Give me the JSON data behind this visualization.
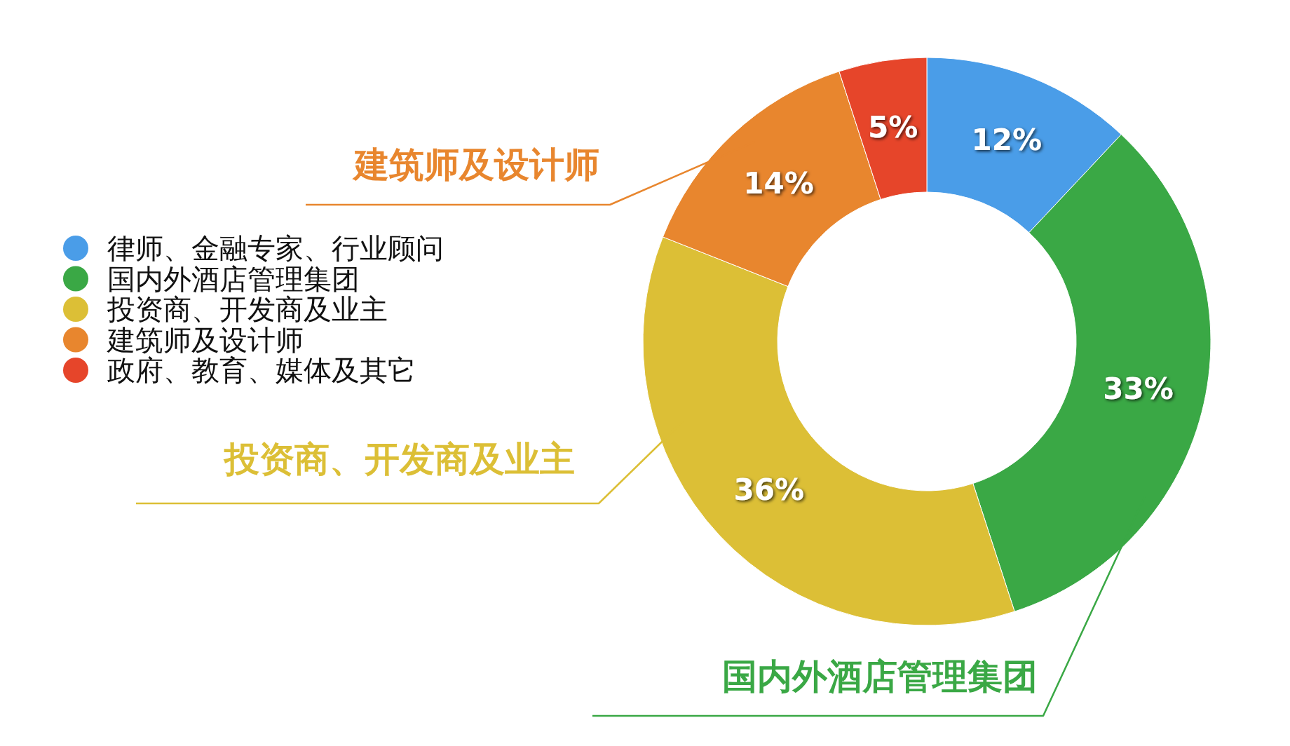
{
  "chart_data": {
    "type": "donut",
    "categories": [
      "律师、金融专家、行业顾问",
      "国内外酒店管理集团",
      "投资商、开发商及业主",
      "建筑师及设计师",
      "政府、教育、媒体及其它"
    ],
    "values": [
      12,
      33,
      36,
      14,
      5
    ],
    "colors": [
      "#4a9de8",
      "#3aa845",
      "#dcbf36",
      "#e8862e",
      "#e6452a"
    ],
    "value_labels": [
      "12%",
      "33%",
      "36%",
      "14%",
      "5%"
    ],
    "legend": "left",
    "annotations": [
      {
        "text": "建筑师及设计师",
        "x": "建筑师及设计师"
      },
      {
        "text": "投资商、开发商及业主",
        "x": "投资商、开发商及业主"
      },
      {
        "text": "国内外酒店管理集团",
        "x": "国内外酒店管理集团"
      }
    ]
  }
}
